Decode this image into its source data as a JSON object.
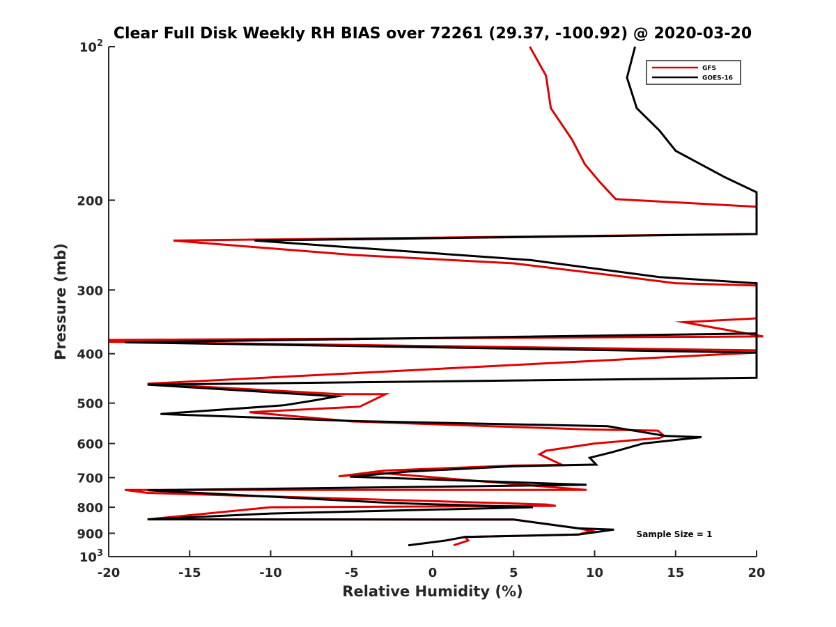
{
  "chart_data": {
    "type": "line",
    "title": "Clear Full Disk Weekly RH BIAS over 72261 (29.37, -100.92) @ 2020-03-20",
    "xlabel": "Relative Humidity (%)",
    "ylabel": "Pressure (mb)",
    "xlim": [
      -20,
      20
    ],
    "ylim": [
      100,
      1000
    ],
    "y_scale": "log",
    "y_reversed": true,
    "x_ticks": [
      "-20",
      "-15",
      "-10",
      "-5",
      "0",
      "5",
      "10",
      "15",
      "20"
    ],
    "y_ticks": [
      {
        "value": 100,
        "base": "10",
        "exp": "2"
      },
      {
        "value": 200,
        "label": "200"
      },
      {
        "value": 300,
        "label": "300"
      },
      {
        "value": 400,
        "label": "400"
      },
      {
        "value": 500,
        "label": "500"
      },
      {
        "value": 600,
        "label": "600"
      },
      {
        "value": 700,
        "label": "700"
      },
      {
        "value": 800,
        "label": "800"
      },
      {
        "value": 900,
        "label": "900"
      },
      {
        "value": 1000,
        "base": "10",
        "exp": "3"
      }
    ],
    "grid": false,
    "legend_position": "top-right",
    "annotation": "Sample Size = 1",
    "series": [
      {
        "name": "GFS",
        "color": "#e00000",
        "x": [
          6.0,
          7.0,
          7.3,
          8.6,
          9.4,
          10.3,
          11.3,
          20.0,
          20.0,
          -16.0,
          -5.0,
          5.0,
          12.0,
          15.0,
          20.0,
          20.0,
          15.5,
          20.4,
          -20.0,
          -20.0,
          20.0,
          20.0,
          -17.6,
          -5.8,
          -2.9,
          -4.5,
          -11.3,
          -5.0,
          9.5,
          13.9,
          14.3,
          14.0,
          10.0,
          7.0,
          6.6,
          8.0,
          5.0,
          -3.0,
          -5.8,
          -3.3,
          9.5,
          -19.0,
          -17.6,
          7.0,
          7.6,
          -10.0,
          -17.6,
          5.0,
          9.0,
          9.8,
          9.0,
          2.0,
          2.2,
          1.3
        ],
        "y": [
          100,
          114,
          132,
          152,
          170,
          184,
          199,
          206,
          233,
          240,
          256,
          266,
          283,
          291,
          294,
          341,
          347,
          370,
          376,
          379,
          394,
          398,
          458,
          480,
          480,
          508,
          521,
          543,
          563,
          566,
          580,
          585,
          600,
          620,
          630,
          661,
          663,
          678,
          696,
          685,
          740,
          740,
          750,
          790,
          795,
          800,
          845,
          846,
          880,
          890,
          905,
          915,
          930,
          950
        ]
      },
      {
        "name": "GOES-16",
        "color": "#000000",
        "x": [
          12.5,
          12.0,
          12.6,
          14.0,
          15.0,
          18.0,
          20.0,
          20.0,
          -11.0,
          6.0,
          14.0,
          20.0,
          20.0,
          -19.0,
          20.0,
          20.0,
          -17.6,
          -5.9,
          -7.5,
          -9.2,
          -16.8,
          -5.0,
          10.8,
          14.4,
          16.6,
          13.0,
          11.0,
          9.7,
          10.1,
          5.0,
          -1.5,
          -5.1,
          9.5,
          -17.6,
          -2.5,
          6.2,
          -10.0,
          -17.6,
          5.0,
          9.0,
          11.2,
          9.0,
          2.0,
          0.8,
          -1.5
        ],
        "y": [
          100,
          115,
          132,
          146,
          160,
          180,
          193,
          233,
          240,
          262,
          283,
          291,
          398,
          380,
          365,
          446,
          460,
          485,
          495,
          505,
          525,
          542,
          555,
          580,
          583,
          600,
          625,
          640,
          660,
          665,
          681,
          697,
          723,
          741,
          785,
          800,
          823,
          845,
          846,
          880,
          885,
          905,
          915,
          930,
          950
        ]
      }
    ]
  }
}
